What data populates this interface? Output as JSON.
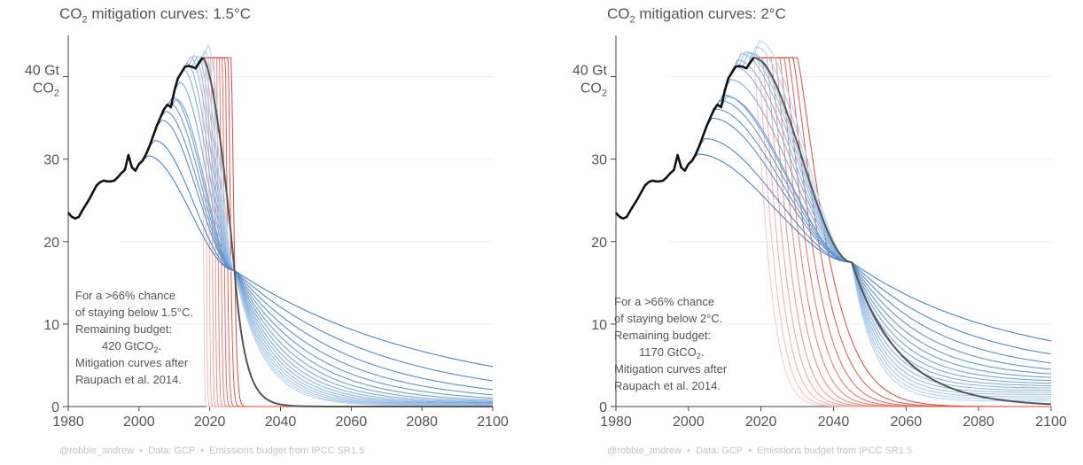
{
  "colors": {
    "historical": "#111111",
    "reference": "#555555",
    "blue_curves": "#4a84c4",
    "red_curves": "#e0473a",
    "axis_text": "#555555",
    "grid": "#eeeeee",
    "credit_text": "#c4c4c4"
  },
  "credit": {
    "author": "@robbie_andrew",
    "data": "Data: GCP",
    "budget": "Emissions budget from IPCC SR1.5",
    "separator": "•"
  },
  "historical_emissions": {
    "x": [
      1980,
      1981,
      1982,
      1983,
      1984,
      1985,
      1986,
      1987,
      1988,
      1989,
      1990,
      1991,
      1992,
      1993,
      1994,
      1995,
      1996,
      1997,
      1998,
      1999,
      2000,
      2001,
      2002,
      2003,
      2004,
      2005,
      2006,
      2007,
      2008,
      2009,
      2010,
      2011,
      2012,
      2013,
      2014,
      2015,
      2016,
      2017,
      2018
    ],
    "y": [
      23.5,
      23.0,
      22.8,
      23.0,
      23.8,
      24.5,
      25.2,
      26.0,
      26.8,
      27.2,
      27.4,
      27.3,
      27.3,
      27.4,
      27.8,
      28.3,
      28.7,
      30.5,
      29.0,
      28.6,
      29.4,
      29.8,
      30.6,
      31.6,
      32.8,
      34.0,
      35.0,
      36.0,
      36.6,
      36.3,
      38.3,
      39.8,
      40.5,
      41.2,
      41.3,
      41.2,
      41.0,
      41.7,
      42.3
    ]
  },
  "chart_data": [
    {
      "type": "line",
      "title_prefix": "CO",
      "title_sub": "2",
      "title_suffix": " mitigation curves: 1.5°C",
      "ylabel_line1": "40 Gt",
      "ylabel_line2_prefix": "CO",
      "ylabel_line2_sub": "2",
      "xlim": [
        1980,
        2100
      ],
      "ylim": [
        0,
        45
      ],
      "xticks": [
        1980,
        2000,
        2020,
        2040,
        2060,
        2080,
        2100
      ],
      "yticks": [
        0,
        10,
        20,
        30
      ],
      "y40_label_note": "40 tick is labeled as the y-axis unit label",
      "crossing": {
        "year": 2027,
        "value": 16.5
      },
      "red_curves": {
        "count": 11,
        "drop_start_year_first": 2018,
        "drop_start_year_last": 2026,
        "plateau_value": 42.3
      },
      "blue_curves": {
        "count": 16,
        "start_years": [
          2018,
          2017,
          2016,
          2015,
          2014,
          2013,
          2012,
          2011,
          2010,
          2009,
          2008,
          2007,
          2006,
          2005,
          2003,
          2001
        ],
        "tail_value_2100_max": 0.6
      },
      "reference_curve": {
        "start_year": 2018,
        "end_year": 2045
      },
      "annotation": {
        "line1": "For a >66% chance",
        "line2": "of staying below 1.5°C.",
        "line3": "Remaining budget:",
        "line4_prefix": "420 GtCO",
        "line4_sub": "2",
        "line4_suffix": ".",
        "line5": "Mitigation curves after",
        "line6": "Raupach et al. 2014."
      }
    },
    {
      "type": "line",
      "title_prefix": "CO",
      "title_sub": "2",
      "title_suffix": " mitigation curves: 2°C",
      "ylabel_line1": "40 Gt",
      "ylabel_line2_prefix": "CO",
      "ylabel_line2_sub": "2",
      "xlim": [
        1980,
        2100
      ],
      "ylim": [
        0,
        45
      ],
      "xticks": [
        1980,
        2000,
        2020,
        2040,
        2060,
        2080,
        2100
      ],
      "yticks": [
        0,
        10,
        20,
        30
      ],
      "crossing": {
        "year": 2045,
        "value": 17.5
      },
      "red_curves": {
        "count": 11,
        "drop_start_year_first": 2018,
        "drop_start_year_last": 2030,
        "plateau_value": 42.3
      },
      "blue_curves": {
        "count": 16,
        "start_years": [
          2018,
          2017,
          2016,
          2015,
          2014,
          2013,
          2012,
          2011,
          2010,
          2009,
          2008,
          2007,
          2006,
          2005,
          2003,
          2001
        ],
        "tail_value_2100_max": 4.5
      },
      "reference_curve": {
        "start_year": 2018,
        "end_year": 2100
      },
      "annotation": {
        "line1": "For a >66% chance",
        "line2": "of staying below 2°C.",
        "line3": "Remaining budget:",
        "line4_prefix": "1170 GtCO",
        "line4_sub": "2",
        "line4_suffix": ".",
        "line5": "Mitigation curves after",
        "line6": "Raupach et al. 2014."
      }
    }
  ]
}
